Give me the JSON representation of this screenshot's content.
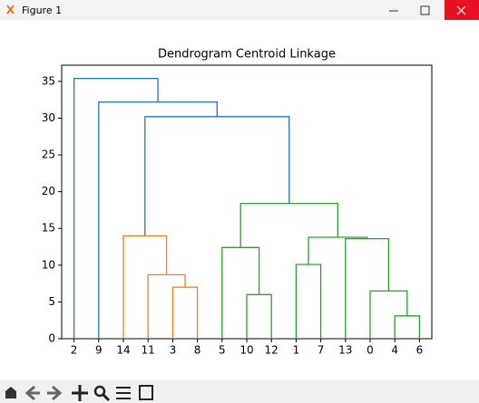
{
  "window_title": "Figure 1",
  "chart_data": {
    "type": "dendrogram",
    "title": "Dendrogram Centroid Linkage",
    "categories": [
      2,
      9,
      14,
      11,
      3,
      8,
      5,
      10,
      12,
      1,
      7,
      13,
      0,
      4,
      6
    ],
    "merges": [
      {
        "children": [
          4,
          5
        ],
        "height": 7.0,
        "color": "#ff7f0e"
      },
      {
        "children": [
          3,
          15
        ],
        "height": 8.7,
        "color": "#ff7f0e"
      },
      {
        "children": [
          2,
          16
        ],
        "height": 14.0,
        "color": "#ff7f0e"
      },
      {
        "children": [
          7,
          8
        ],
        "height": 6.0,
        "color": "#2ca02c"
      },
      {
        "children": [
          6,
          18
        ],
        "height": 12.4,
        "color": "#2ca02c"
      },
      {
        "children": [
          9,
          10
        ],
        "height": 10.1,
        "color": "#2ca02c"
      },
      {
        "children": [
          13,
          14
        ],
        "height": 3.1,
        "color": "#2ca02c"
      },
      {
        "children": [
          12,
          21
        ],
        "height": 6.5,
        "color": "#2ca02c"
      },
      {
        "children": [
          11,
          22
        ],
        "height": 13.6,
        "color": "#2ca02c"
      },
      {
        "children": [
          20,
          23
        ],
        "height": 13.8,
        "color": "#2ca02c"
      },
      {
        "children": [
          19,
          24
        ],
        "height": 18.4,
        "color": "#2ca02c"
      },
      {
        "children": [
          17,
          25
        ],
        "height": 30.2,
        "color": "#1f77b4"
      },
      {
        "children": [
          1,
          26
        ],
        "height": 32.2,
        "color": "#1f77b4"
      },
      {
        "children": [
          0,
          27
        ],
        "height": 35.4,
        "color": "#1f77b4"
      }
    ],
    "ylim": [
      0,
      37.2
    ],
    "yticks": [
      0,
      5,
      10,
      15,
      20,
      25,
      30,
      35
    ]
  }
}
